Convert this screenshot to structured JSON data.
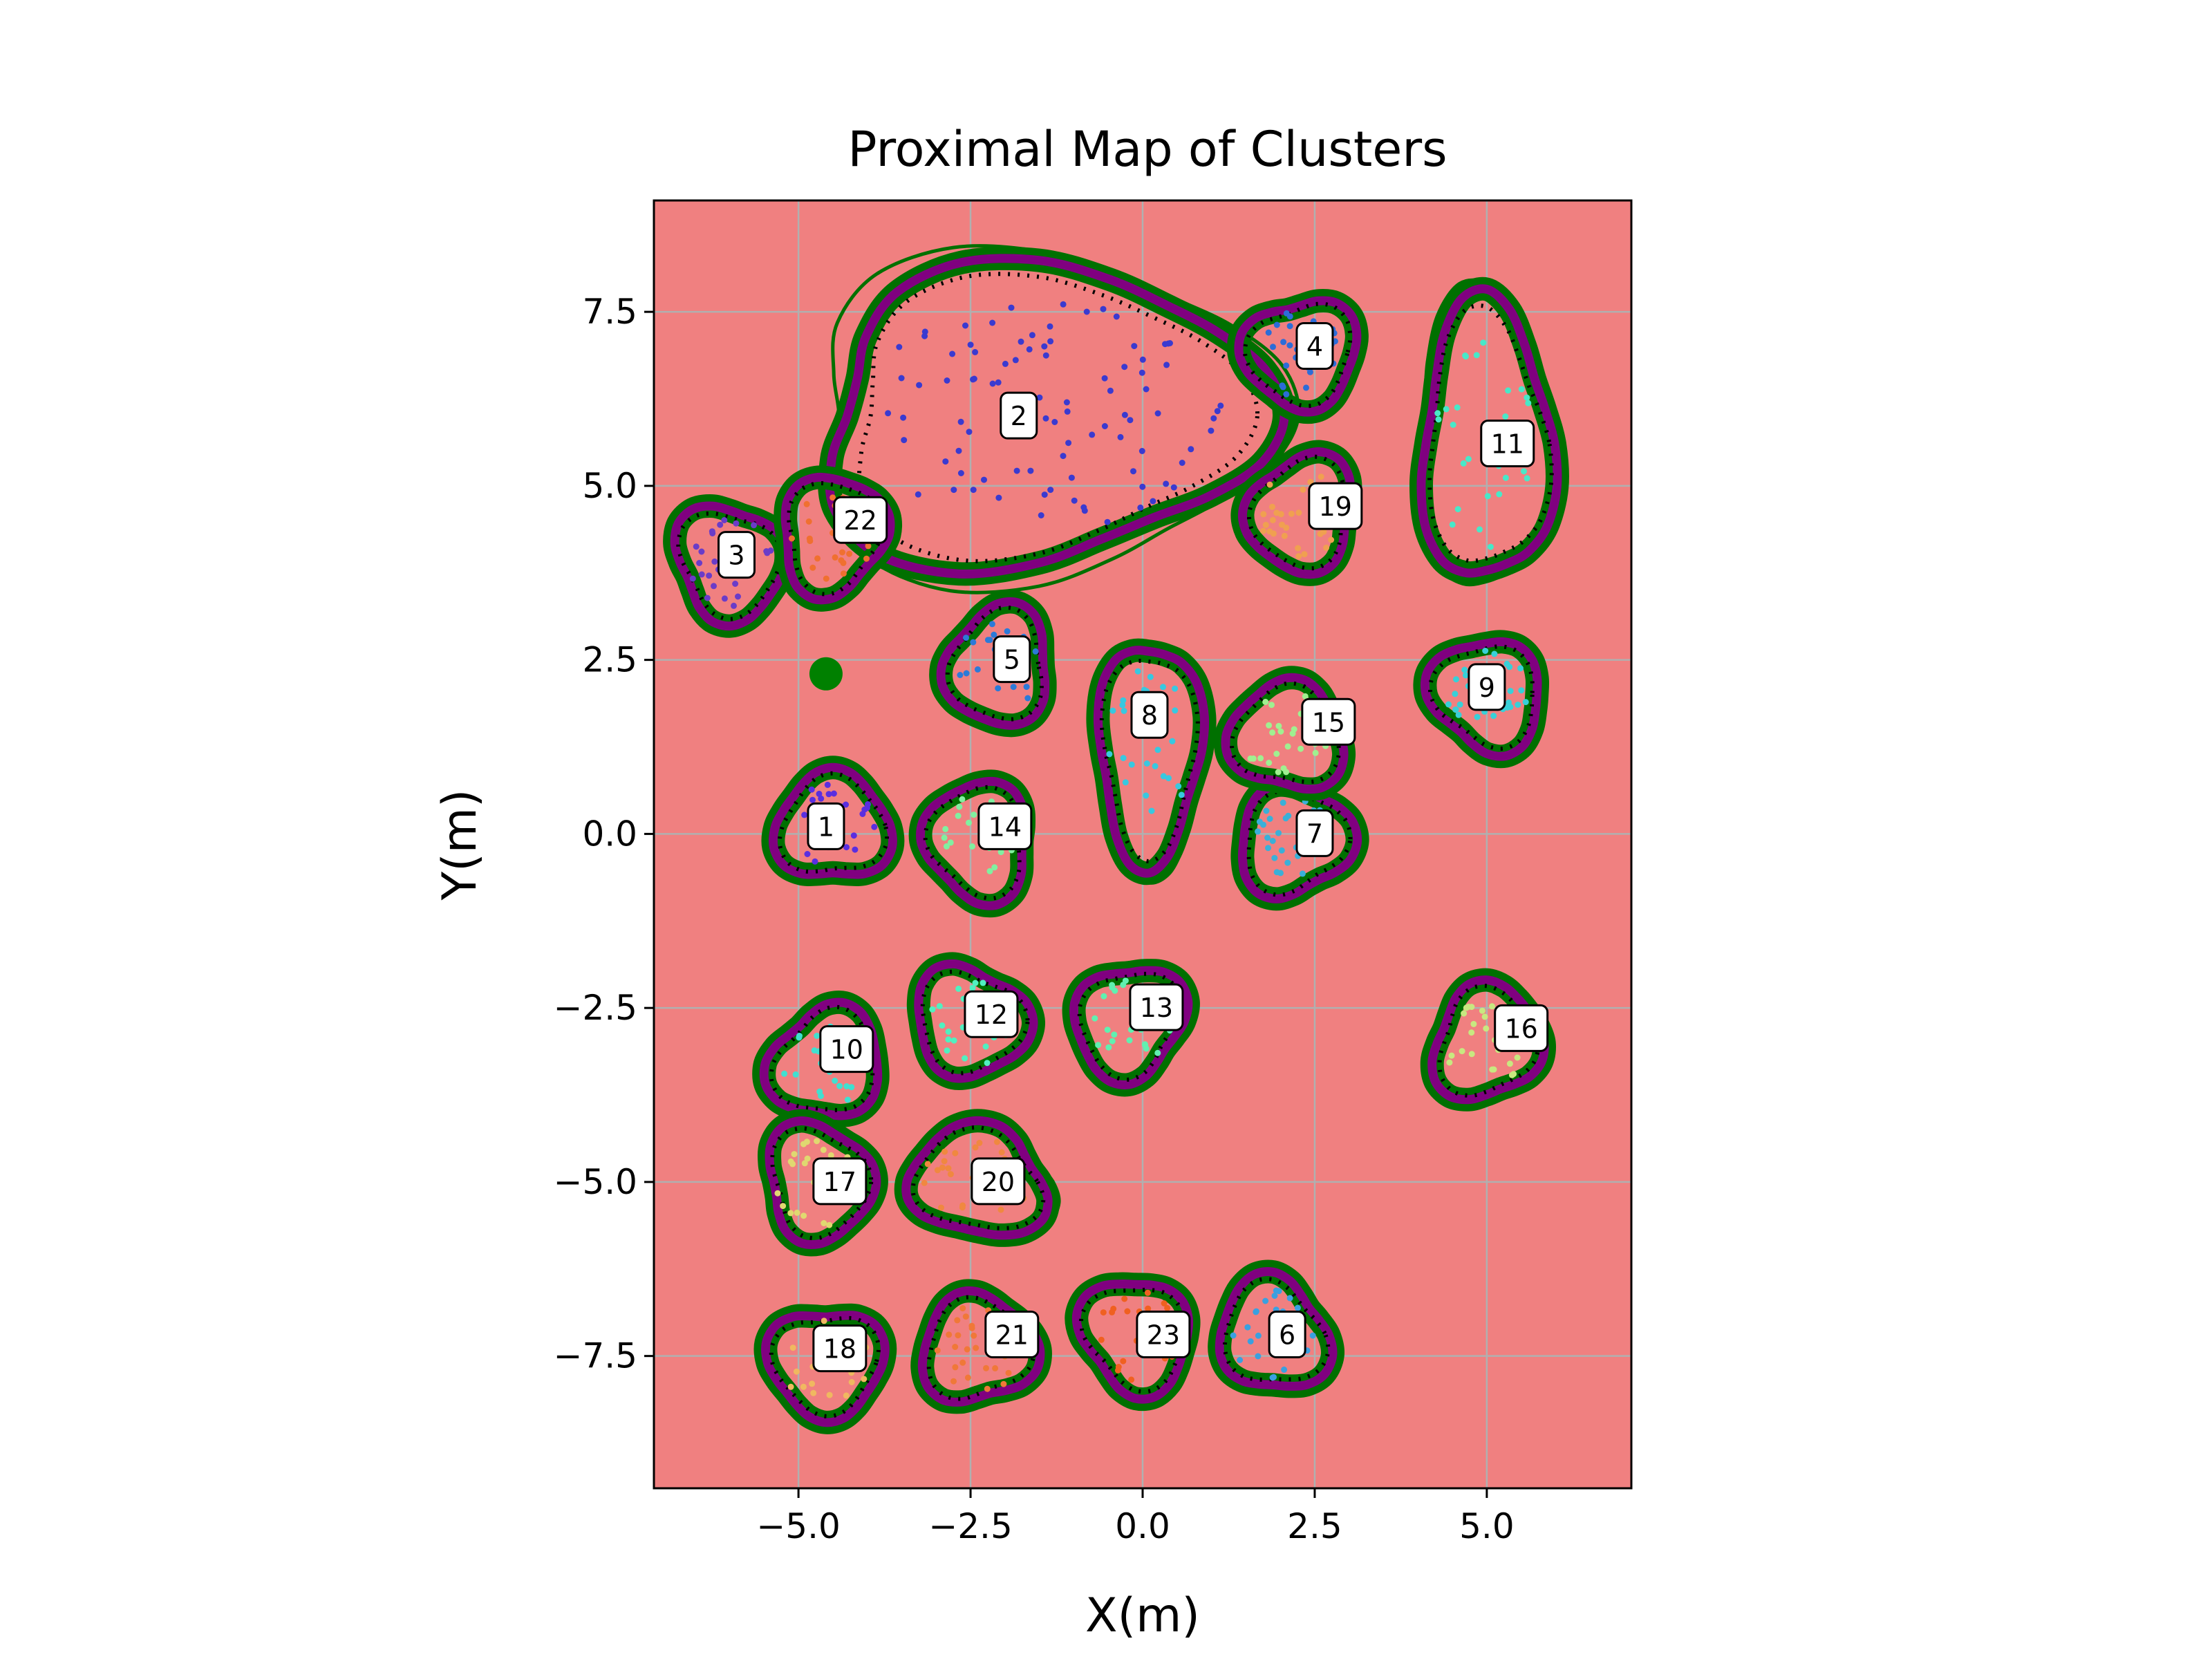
{
  "chart_data": {
    "type": "scatter",
    "title": "Proximal Map of Clusters",
    "xlabel": "X(m)",
    "ylabel": "Y(m)",
    "xlim": [
      -7.1,
      7.1
    ],
    "ylim": [
      -9.4,
      9.1
    ],
    "xticks": [
      -5.0,
      -2.5,
      0.0,
      2.5,
      5.0
    ],
    "xtick_labels": [
      "−5.0",
      "−2.5",
      "0.0",
      "2.5",
      "5.0"
    ],
    "yticks": [
      -7.5,
      -5.0,
      -2.5,
      0.0,
      2.5,
      5.0,
      7.5
    ],
    "ytick_labels": [
      "−7.5",
      "−5.0",
      "−2.5",
      "0.0",
      "2.5",
      "5.0",
      "7.5"
    ],
    "grid": true,
    "background_color": "#f08080",
    "colors": {
      "outer_boundary": "#007000",
      "inner_boundary": "#800080",
      "points_dark": "#000000",
      "stray_point": "#008000"
    },
    "stray_point": {
      "x": -4.6,
      "y": 2.3
    },
    "clusters": [
      {
        "id": 1,
        "label": "1",
        "x": -4.5,
        "y": 0.1,
        "label_x": -4.6,
        "label_y": 0.1,
        "point_color": "#5a2ee0"
      },
      {
        "id": 2,
        "label": "2",
        "x": -1.5,
        "y": 6.0,
        "label_x": -1.8,
        "label_y": 6.0,
        "point_color": "#3a3ad0"
      },
      {
        "id": 3,
        "label": "3",
        "x": -6.0,
        "y": 3.9,
        "label_x": -5.9,
        "label_y": 4.0,
        "point_color": "#6a3cc8"
      },
      {
        "id": 4,
        "label": "4",
        "x": 2.3,
        "y": 6.9,
        "label_x": 2.5,
        "label_y": 7.0,
        "point_color": "#2c6cd8"
      },
      {
        "id": 5,
        "label": "5",
        "x": -2.1,
        "y": 2.4,
        "label_x": -1.9,
        "label_y": 2.5,
        "point_color": "#2c7ad8"
      },
      {
        "id": 6,
        "label": "6",
        "x": 1.9,
        "y": -7.2,
        "label_x": 2.1,
        "label_y": -7.2,
        "point_color": "#3aa0e0"
      },
      {
        "id": 7,
        "label": "7",
        "x": 2.2,
        "y": -0.1,
        "label_x": 2.5,
        "label_y": 0.0,
        "point_color": "#3ab0d8"
      },
      {
        "id": 8,
        "label": "8",
        "x": 0.1,
        "y": 1.2,
        "label_x": 0.1,
        "label_y": 1.7,
        "point_color": "#38c8e0"
      },
      {
        "id": 9,
        "label": "9",
        "x": 5.0,
        "y": 2.0,
        "label_x": 5.0,
        "label_y": 2.1,
        "point_color": "#38d0d8"
      },
      {
        "id": 10,
        "label": "10",
        "x": -4.6,
        "y": -3.3,
        "label_x": -4.3,
        "label_y": -3.1,
        "point_color": "#40e0d0"
      },
      {
        "id": 11,
        "label": "11",
        "x": 5.0,
        "y": 5.6,
        "label_x": 5.3,
        "label_y": 5.6,
        "point_color": "#48e8c8"
      },
      {
        "id": 12,
        "label": "12",
        "x": -2.5,
        "y": -2.7,
        "label_x": -2.2,
        "label_y": -2.6,
        "point_color": "#50f0c0"
      },
      {
        "id": 13,
        "label": "13",
        "x": -0.2,
        "y": -2.7,
        "label_x": 0.2,
        "label_y": -2.5,
        "point_color": "#60f0b0"
      },
      {
        "id": 14,
        "label": "14",
        "x": -2.4,
        "y": -0.1,
        "label_x": -2.0,
        "label_y": 0.1,
        "point_color": "#80f0a0"
      },
      {
        "id": 15,
        "label": "15",
        "x": 2.1,
        "y": 1.4,
        "label_x": 2.7,
        "label_y": 1.6,
        "point_color": "#a0f090"
      },
      {
        "id": 16,
        "label": "16",
        "x": 5.0,
        "y": -3.0,
        "label_x": 5.5,
        "label_y": -2.8,
        "point_color": "#c8e880"
      },
      {
        "id": 17,
        "label": "17",
        "x": -4.7,
        "y": -5.0,
        "label_x": -4.4,
        "label_y": -5.0,
        "point_color": "#e0d870"
      },
      {
        "id": 18,
        "label": "18",
        "x": -4.6,
        "y": -7.6,
        "label_x": -4.4,
        "label_y": -7.4,
        "point_color": "#f0b860"
      },
      {
        "id": 19,
        "label": "19",
        "x": 2.3,
        "y": 4.6,
        "label_x": 2.8,
        "label_y": 4.7,
        "point_color": "#f0a050"
      },
      {
        "id": 20,
        "label": "20",
        "x": -2.4,
        "y": -5.0,
        "label_x": -2.1,
        "label_y": -5.0,
        "point_color": "#f08840"
      },
      {
        "id": 21,
        "label": "21",
        "x": -2.4,
        "y": -7.4,
        "label_x": -1.9,
        "label_y": -7.2,
        "point_color": "#f07838"
      },
      {
        "id": 22,
        "label": "22",
        "x": -4.5,
        "y": 4.3,
        "label_x": -4.1,
        "label_y": 4.5,
        "point_color": "#f07030"
      },
      {
        "id": 23,
        "label": "23",
        "x": -0.1,
        "y": -7.2,
        "label_x": 0.3,
        "label_y": -7.2,
        "point_color": "#f06020"
      }
    ]
  }
}
